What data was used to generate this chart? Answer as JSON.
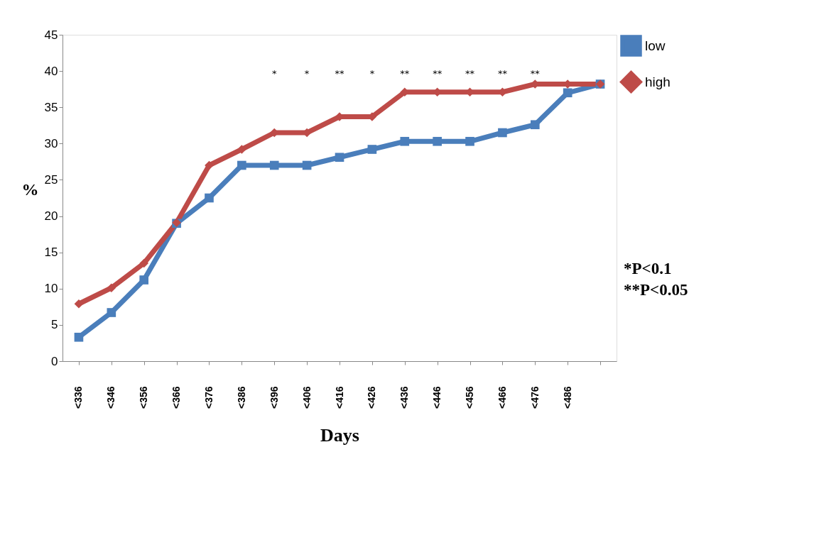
{
  "chart_data": {
    "type": "line",
    "xlabel": "Days",
    "ylabel": "%",
    "categories": [
      "<336",
      "<346",
      "<356",
      "<366",
      "<376",
      "<386",
      "<396",
      "<406",
      "<416",
      "<426",
      "<436",
      "<446",
      "<456",
      "<466",
      "<476",
      "<486",
      null
    ],
    "series": [
      {
        "name": "low",
        "color": "#4a7ebb",
        "marker": "square",
        "values": [
          3.3,
          6.7,
          11.2,
          19.0,
          22.5,
          27.0,
          27.0,
          27.0,
          28.1,
          29.2,
          30.3,
          30.3,
          30.3,
          31.5,
          32.6,
          37.0,
          38.2
        ]
      },
      {
        "name": "high",
        "color": "#be4b48",
        "marker": "diamond",
        "values": [
          7.9,
          10.1,
          13.5,
          19.1,
          27.0,
          29.2,
          31.5,
          31.5,
          33.7,
          33.7,
          37.1,
          37.1,
          37.1,
          37.1,
          38.2,
          38.2,
          38.2
        ]
      }
    ],
    "ylim": [
      0,
      45
    ],
    "yticks": [
      0,
      5,
      10,
      15,
      20,
      25,
      30,
      35,
      40,
      45
    ],
    "grid": false,
    "legend": "right",
    "annotations": [
      "*",
      "*",
      "**",
      "*",
      "**",
      "**",
      "**",
      "**",
      "**",
      "*P<0.1",
      "**P<0.05"
    ]
  }
}
